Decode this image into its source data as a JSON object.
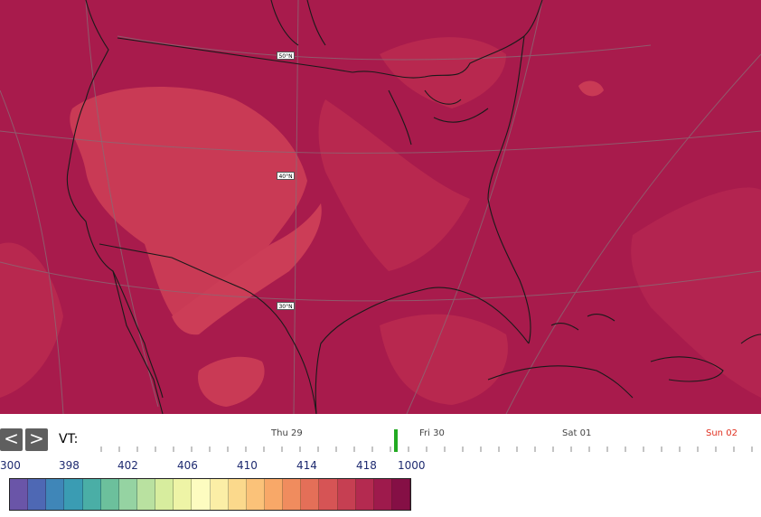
{
  "map": {
    "background_color": "#a81b4c",
    "light_region_color": "#c93a55",
    "mid_region_color": "#b8284f",
    "coastline_color": "#1a1a1a",
    "grid_color": "#8a6a74",
    "lat_labels": [
      "50°N",
      "40°N",
      "30°N"
    ]
  },
  "timebar": {
    "prev_label": "<",
    "next_label": ">",
    "vt_label": "VT:",
    "days": [
      {
        "label": "Thu 29",
        "weekend": false
      },
      {
        "label": "Fri 30",
        "weekend": false
      },
      {
        "label": "Sat 01",
        "weekend": false
      },
      {
        "label": "Sun 02",
        "weekend": true
      }
    ],
    "current_marker_color": "#22aa22"
  },
  "legend": {
    "labels": [
      "300",
      "398",
      "402",
      "406",
      "410",
      "414",
      "418",
      "1000"
    ],
    "colors": [
      "#6a55a8",
      "#4e68b4",
      "#3f86b8",
      "#3a9cb3",
      "#4aaea6",
      "#6cc09c",
      "#95d3a2",
      "#b9e1a0",
      "#d7ed9e",
      "#eef4a6",
      "#fdfcc0",
      "#fbeea6",
      "#fbd98c",
      "#fbc279",
      "#f8a868",
      "#f08c5e",
      "#e46f58",
      "#d65455",
      "#c63f52",
      "#b42a50",
      "#9e1a4c",
      "#850f45"
    ]
  }
}
